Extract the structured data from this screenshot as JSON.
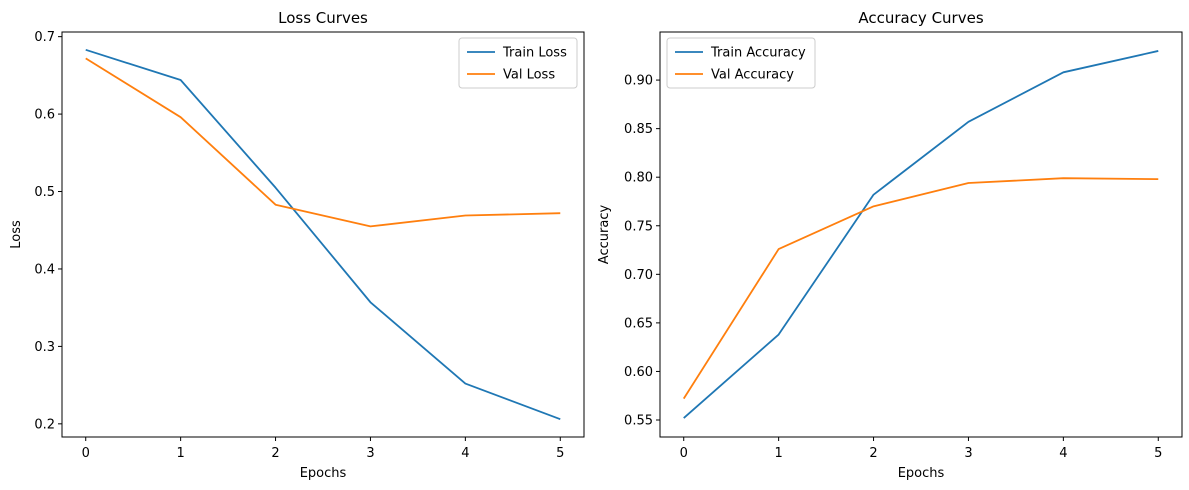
{
  "chart_data": [
    {
      "type": "line",
      "title": "Loss Curves",
      "xlabel": "Epochs",
      "ylabel": "Loss",
      "x": [
        0,
        1,
        2,
        3,
        4,
        5
      ],
      "xlim": [
        -0.25,
        5.25
      ],
      "ylim": [
        0.183,
        0.706
      ],
      "xticks": [
        "0",
        "1",
        "2",
        "3",
        "4",
        "5"
      ],
      "yticks": [
        "0.2",
        "0.3",
        "0.4",
        "0.5",
        "0.6",
        "0.7"
      ],
      "grid": false,
      "legend_position": "top-right",
      "series": [
        {
          "name": "Train Loss",
          "color": "#1f77b4",
          "values": [
            0.683,
            0.644,
            0.505,
            0.357,
            0.252,
            0.206
          ]
        },
        {
          "name": "Val Loss",
          "color": "#ff7f0e",
          "values": [
            0.672,
            0.596,
            0.483,
            0.455,
            0.469,
            0.472
          ]
        }
      ]
    },
    {
      "type": "line",
      "title": "Accuracy Curves",
      "xlabel": "Epochs",
      "ylabel": "Accuracy",
      "x": [
        0,
        1,
        2,
        3,
        4,
        5
      ],
      "xlim": [
        -0.25,
        5.25
      ],
      "ylim": [
        0.5325,
        0.9495
      ],
      "xticks": [
        "0",
        "1",
        "2",
        "3",
        "4",
        "5"
      ],
      "yticks": [
        "0.55",
        "0.60",
        "0.65",
        "0.70",
        "0.75",
        "0.80",
        "0.85",
        "0.90"
      ],
      "grid": false,
      "legend_position": "top-left",
      "series": [
        {
          "name": "Train Accuracy",
          "color": "#1f77b4",
          "values": [
            0.552,
            0.638,
            0.782,
            0.857,
            0.908,
            0.93
          ]
        },
        {
          "name": "Val Accuracy",
          "color": "#ff7f0e",
          "values": [
            0.572,
            0.726,
            0.77,
            0.794,
            0.799,
            0.798
          ]
        }
      ]
    }
  ]
}
